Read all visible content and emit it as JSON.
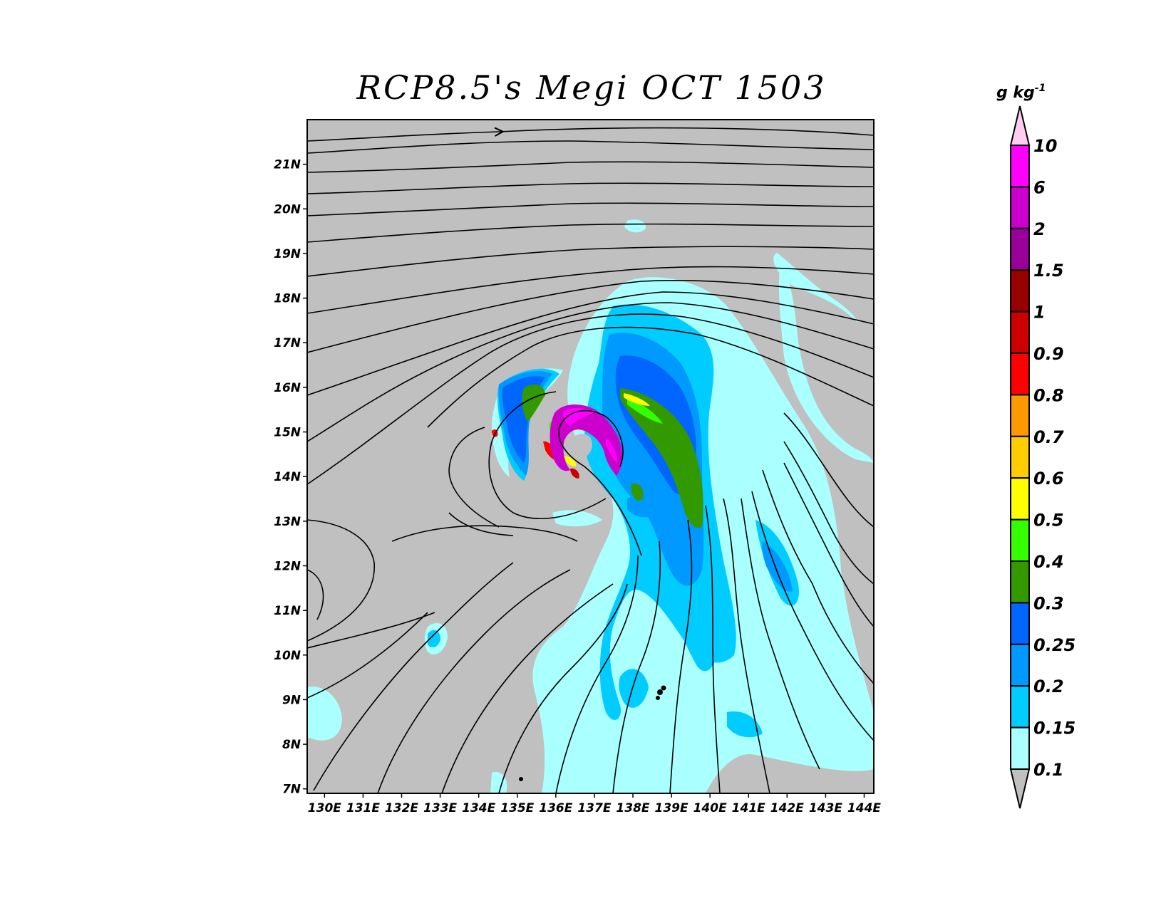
{
  "title": "RCP8.5's Megi OCT 1503",
  "colorbar": {
    "unit": "g kg",
    "unit_exp": "-1",
    "levels": [
      "0.1",
      "0.15",
      "0.2",
      "0.25",
      "0.3",
      "0.4",
      "0.5",
      "0.6",
      "0.7",
      "0.8",
      "0.9",
      "1",
      "1.5",
      "2",
      "6",
      "10"
    ],
    "colors": [
      "#aaffff",
      "#00ccff",
      "#0099ff",
      "#0066ff",
      "#339900",
      "#33ff00",
      "#ffff00",
      "#ffcc00",
      "#ff9900",
      "#ff0000",
      "#cc0000",
      "#990000",
      "#990099",
      "#cc00cc",
      "#ff00ff"
    ],
    "under_color": "#c0c0c0",
    "over_color": "#ffcdf0"
  },
  "map": {
    "background_color": "#c0c0c0",
    "lat_labels": [
      "21N",
      "20N",
      "19N",
      "18N",
      "17N",
      "16N",
      "15N",
      "14N",
      "13N",
      "12N",
      "11N",
      "10N",
      "9N",
      "8N",
      "7N"
    ],
    "lon_labels": [
      "130E",
      "131E",
      "132E",
      "133E",
      "134E",
      "135E",
      "136E",
      "137E",
      "138E",
      "139E",
      "140E",
      "141E",
      "142E",
      "143E",
      "144E"
    ],
    "lat_values": [
      21,
      20,
      19,
      18,
      17,
      16,
      15,
      14,
      13,
      12,
      11,
      10,
      9,
      8,
      7
    ],
    "lon_values": [
      130,
      131,
      132,
      133,
      134,
      135,
      136,
      137,
      138,
      139,
      140,
      141,
      142,
      143,
      144
    ]
  }
}
